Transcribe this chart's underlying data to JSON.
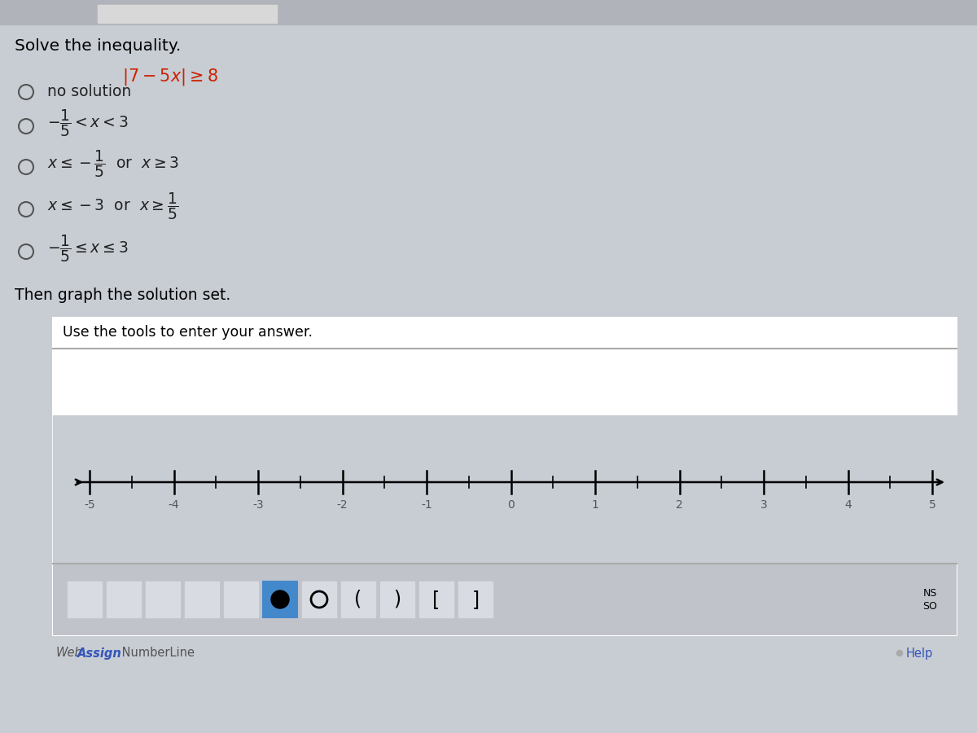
{
  "bg_color": "#c8cdd4",
  "top_bar_color": "#b0b4ba",
  "title": "Solve the inequality.",
  "equation_color": "#cc2200",
  "then_graph_text": "Then graph the solution set.",
  "use_tools_text": "Use the tools to enter your answer.",
  "box_bg": "#ffffff",
  "box_border": "#aaaaaa",
  "header_border": "#aaaaaa",
  "nl_area_bg": "#c8cdd4",
  "toolbar_bg": "#c0c4ca",
  "toolbar_border": "#aaaaaa",
  "btn_bg": "#d8dce2",
  "btn_border": "#999999",
  "btn_blue_bg": "#4488cc",
  "circle_filled_color": "#000000",
  "numberline_label_color": "#555555",
  "assign_color": "#3355bb",
  "help_color": "#3355bb",
  "nl_line_color": "#000000",
  "tick_label_color": "#555555",
  "ns_so_bg": "#c0c4ca",
  "ns_so_border": "#888888",
  "radio_edge": "#555555",
  "option_text_color": "#222222"
}
